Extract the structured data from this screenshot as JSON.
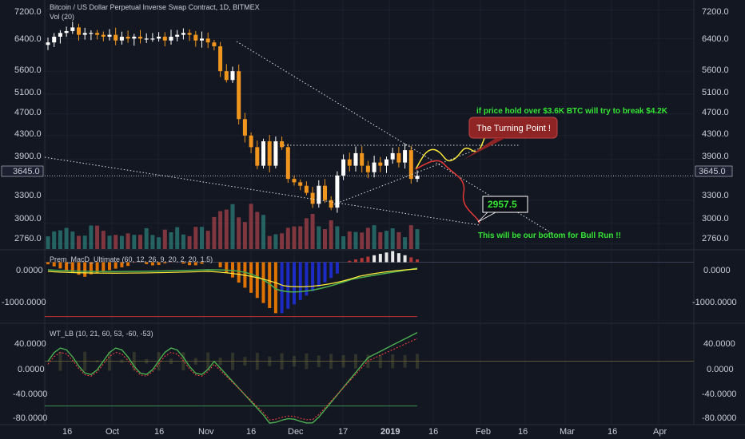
{
  "header": {
    "title": "Bitcoin / US Dollar Perpetual Inverse Swap Contract, 1D, BITMEX",
    "volume_label": "Vol (20)"
  },
  "colors": {
    "bg": "#131722",
    "grid": "#1e2230",
    "up": "#ffffff",
    "down": "#f0961e",
    "vol_up": "#26a69a",
    "vol_down": "#ef5350",
    "trend": "#ffffff",
    "path_up": "#ffeb3b",
    "path_down": "#e53935",
    "green_text": "#35e635",
    "turning_bg": "#9e2a2a",
    "macd_pos": "#f57c00",
    "macd_neg": "#1e2dd6",
    "macd_line": "#4caf50",
    "signal_line": "#ffeb3b",
    "wt_line": "#4caf50",
    "wt_signal": "#ff4040"
  },
  "price_axis": {
    "ticks": [
      "7200.0",
      "6400.0",
      "5600.0",
      "5100.0",
      "4700.0",
      "4300.0",
      "3900.0",
      "3300.0",
      "3000.0",
      "2760.0"
    ],
    "current_price": "3645.0"
  },
  "time_axis": {
    "ticks": [
      "16",
      "Oct",
      "16",
      "Nov",
      "16",
      "Dec",
      "17",
      "2019",
      "16",
      "Feb",
      "16",
      "Mar",
      "16",
      "Apr"
    ]
  },
  "annotations": {
    "turning_point": "The Turning Point !",
    "target_text": "if price hold over $3.6K BTC will try to break $4.2K",
    "bottom_value": "2957.5",
    "bottom_text": "This will be our bottom for Bull Run !!"
  },
  "macd_panel": {
    "title": "Prem_MacD_Ultimate (60, 12, 26, 9, 20, 2, 20, 1.5)",
    "ticks": [
      "0.0000",
      "-1000.0000"
    ]
  },
  "wt_panel": {
    "title": "WT_LB (10, 21, 60, 53, -60, -53)",
    "ticks": [
      "40.0000",
      "0.0000",
      "-40.0000",
      "-80.0000"
    ]
  },
  "chart_data": [
    {
      "type": "candlestick",
      "title": "Bitcoin / US Dollar Perpetual Inverse Swap Contract, 1D, BITMEX",
      "x_axis": [
        "16",
        "Oct",
        "16",
        "Nov",
        "16",
        "Dec",
        "17",
        "2019",
        "16",
        "Feb",
        "16",
        "Mar",
        "16",
        "Apr"
      ],
      "y_scale": "log",
      "ylim": [
        2700,
        7400
      ],
      "current_price": 3645.0,
      "close_path": [
        6300,
        6450,
        6550,
        6600,
        6700,
        6500,
        6550,
        6550,
        6500,
        6450,
        6500,
        6350,
        6450,
        6400,
        6450,
        6400,
        6400,
        6400,
        6450,
        6350,
        6450,
        6500,
        6550,
        6500,
        6350,
        6400,
        6300,
        6200,
        5600,
        5400,
        5600,
        4600,
        4300,
        4100,
        3800,
        4200,
        3800,
        4200,
        4100,
        3600,
        3550,
        3500,
        3400,
        3250,
        3500,
        3300,
        3200,
        3650,
        3900,
        3800,
        4000,
        3800,
        3700,
        3850,
        3800,
        3900,
        4000,
        3850,
        4050,
        3600,
        3645
      ],
      "volume_bars": 61,
      "projection_up": [
        3645,
        3900,
        3800,
        4000,
        3900,
        4250
      ],
      "projection_down": [
        3645,
        3700,
        3500,
        3000,
        2957.5
      ],
      "annotations": [
        "The Turning Point !",
        "if price hold over $3.6K BTC will try to break $4.2K",
        "2957.5",
        "This will be our bottom for Bull Run !!"
      ]
    },
    {
      "type": "bar",
      "title": "Prem_MacD_Ultimate (60, 12, 26, 9, 20, 2, 20, 1.5)",
      "ylim": [
        -1300,
        250
      ],
      "y_ticks": [
        0,
        -1000
      ],
      "note": "histogram plus MACD and signal lines"
    },
    {
      "type": "line",
      "title": "WT_LB (10, 21, 60, 53, -60, -53)",
      "ylim": [
        -85,
        50
      ],
      "y_ticks": [
        40,
        0,
        -40,
        -80
      ],
      "levels": [
        60,
        -60
      ]
    }
  ]
}
